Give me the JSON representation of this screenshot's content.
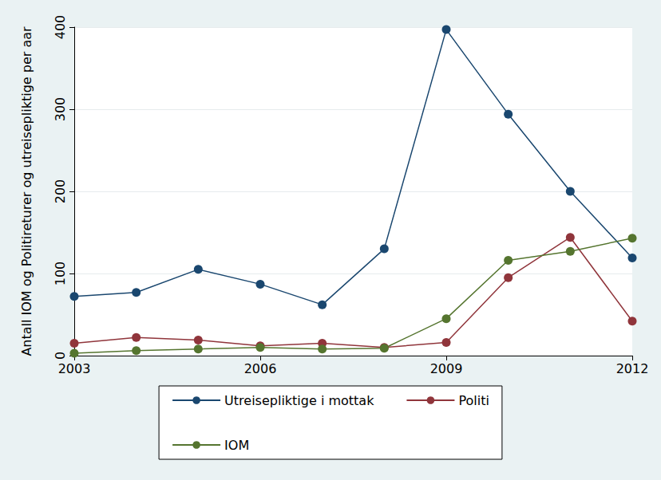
{
  "chart_data": {
    "type": "line",
    "y_label": "Antall IOM og Politireturer og utreisepliktige per aar",
    "x": [
      2003,
      2004,
      2005,
      2006,
      2007,
      2008,
      2009,
      2010,
      2011,
      2012
    ],
    "series": [
      {
        "name": "Utreisepliktige i mottak",
        "color": "#1a476f",
        "marker": "circle",
        "values": [
          72,
          77,
          105,
          87,
          62,
          130,
          397,
          294,
          200,
          119
        ]
      },
      {
        "name": "Politi",
        "color": "#90353b",
        "marker": "circle",
        "values": [
          15,
          22,
          19,
          12,
          15,
          10,
          16,
          95,
          144,
          42
        ]
      },
      {
        "name": "IOM",
        "color": "#55752f",
        "marker": "circle",
        "values": [
          3,
          6,
          8,
          10,
          8,
          9,
          45,
          116,
          127,
          143
        ]
      }
    ],
    "xlim": [
      2003,
      2012
    ],
    "xticks": [
      2003,
      2006,
      2009,
      2012
    ],
    "ylim": [
      0,
      400
    ],
    "yticks": [
      0,
      100,
      200,
      300,
      400
    ],
    "grid": true,
    "legend": "bottom"
  }
}
